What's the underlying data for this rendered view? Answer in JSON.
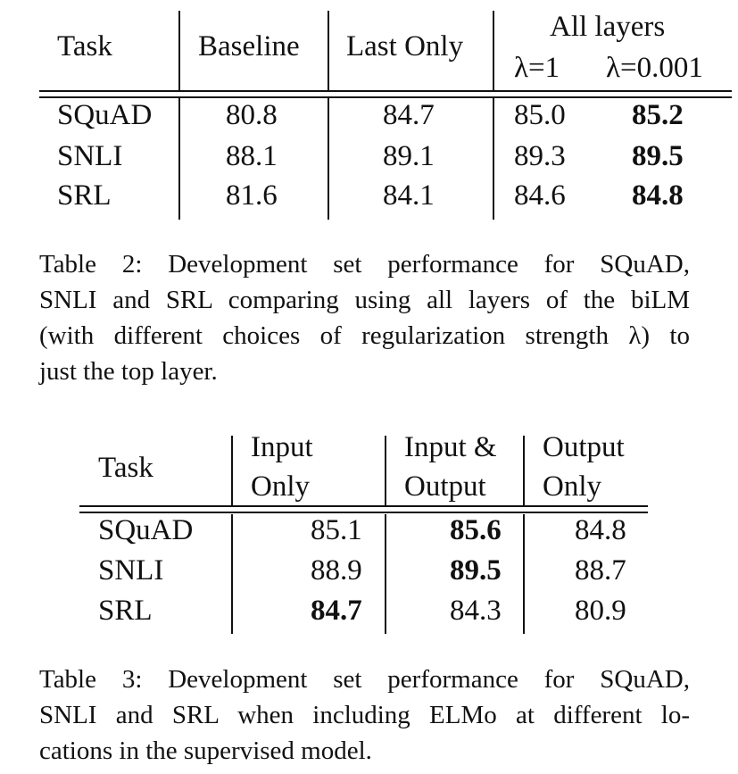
{
  "table2": {
    "header": {
      "task": "Task",
      "baseline": "Baseline",
      "last_only": "Last Only",
      "all_layers": "All layers",
      "lambda1": "λ=1",
      "lambda0001": "λ=0.001"
    },
    "rows": [
      {
        "task": "SQuAD",
        "baseline": "80.8",
        "last_only": "84.7",
        "lambda1": "85.0",
        "lambda0001": "85.2"
      },
      {
        "task": "SNLI",
        "baseline": "88.1",
        "last_only": "89.1",
        "lambda1": "89.3",
        "lambda0001": "89.5"
      },
      {
        "task": "SRL",
        "baseline": "81.6",
        "last_only": "84.1",
        "lambda1": "84.6",
        "lambda0001": "84.8"
      }
    ],
    "caption": [
      "Table 2:  Development set performance for SQuAD,",
      "SNLI and SRL comparing using all layers of the biLM",
      "(with different choices of regularization strength λ) to",
      "just the top layer."
    ]
  },
  "table3": {
    "header": {
      "task": "Task",
      "input_only_1": "Input",
      "input_only_2": "Only",
      "input_output_1": "Input &",
      "input_output_2": "Output",
      "output_only_1": "Output",
      "output_only_2": "Only"
    },
    "rows": [
      {
        "task": "SQuAD",
        "input_only": "85.1",
        "input_output": "85.6",
        "output_only": "84.8"
      },
      {
        "task": "SNLI",
        "input_only": "88.9",
        "input_output": "89.5",
        "output_only": "88.7"
      },
      {
        "task": "SRL",
        "input_only": "84.7",
        "input_output": "84.3",
        "output_only": "80.9"
      }
    ],
    "caption": [
      "Table 3:  Development set performance for SQuAD,",
      "SNLI and SRL when including ELMo at different lo-",
      "cations in the supervised model."
    ]
  }
}
